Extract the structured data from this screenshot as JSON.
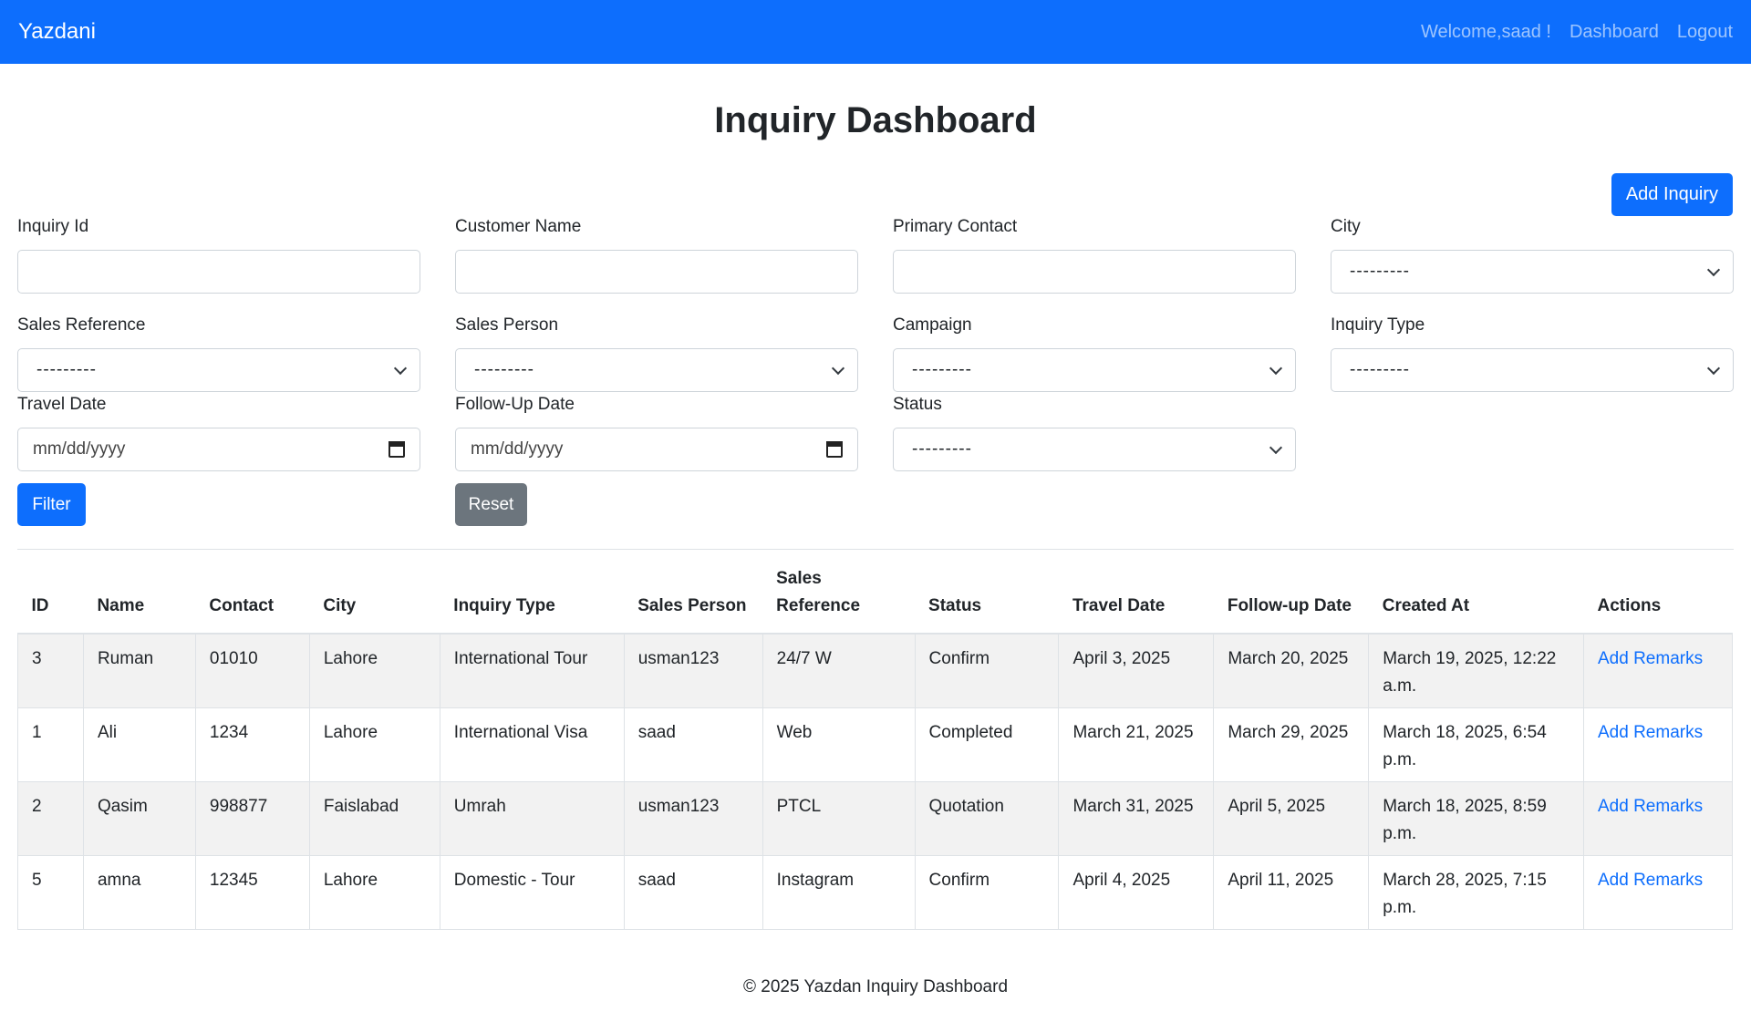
{
  "navbar": {
    "brand": "Yazdani",
    "welcome": "Welcome,saad !",
    "dashboard_link": "Dashboard",
    "logout_link": "Logout"
  },
  "page": {
    "title": "Inquiry Dashboard",
    "add_button": "Add Inquiry"
  },
  "filters": {
    "inquiry_id": {
      "label": "Inquiry Id",
      "value": ""
    },
    "customer_name": {
      "label": "Customer Name",
      "value": ""
    },
    "primary_contact": {
      "label": "Primary Contact",
      "value": ""
    },
    "city": {
      "label": "City",
      "selected": "---------"
    },
    "sales_reference": {
      "label": "Sales Reference",
      "selected": "---------"
    },
    "sales_person": {
      "label": "Sales Person",
      "selected": "---------"
    },
    "campaign": {
      "label": "Campaign",
      "selected": "---------"
    },
    "inquiry_type": {
      "label": "Inquiry Type",
      "selected": "---------"
    },
    "travel_date": {
      "label": "Travel Date",
      "placeholder": "mm/dd/yyyy"
    },
    "follow_up_date": {
      "label": "Follow-Up Date",
      "placeholder": "mm/dd/yyyy"
    },
    "status": {
      "label": "Status",
      "selected": "---------"
    },
    "filter_button": "Filter",
    "reset_button": "Reset"
  },
  "table": {
    "headers": [
      "ID",
      "Name",
      "Contact",
      "City",
      "Inquiry Type",
      "Sales Person",
      "Sales Reference",
      "Status",
      "Travel Date",
      "Follow-up Date",
      "Created At",
      "Actions"
    ],
    "rows": [
      {
        "id": "3",
        "name": "Ruman",
        "contact": "01010",
        "city": "Lahore",
        "inquiry_type": "International Tour",
        "sales_person": "usman123",
        "sales_reference": "24/7 W",
        "status": "Confirm",
        "travel_date": "April 3, 2025",
        "follow_up_date": "March 20, 2025",
        "created_at": "March 19, 2025, 12:22 a.m.",
        "action": "Add Remarks"
      },
      {
        "id": "1",
        "name": "Ali",
        "contact": "1234",
        "city": "Lahore",
        "inquiry_type": "International Visa",
        "sales_person": "saad",
        "sales_reference": "Web",
        "status": "Completed",
        "travel_date": "March 21, 2025",
        "follow_up_date": "March 29, 2025",
        "created_at": "March 18, 2025, 6:54 p.m.",
        "action": "Add Remarks"
      },
      {
        "id": "2",
        "name": "Qasim",
        "contact": "998877",
        "city": "Faislabad",
        "inquiry_type": "Umrah",
        "sales_person": "usman123",
        "sales_reference": "PTCL",
        "status": "Quotation",
        "travel_date": "March 31, 2025",
        "follow_up_date": "April 5, 2025",
        "created_at": "March 18, 2025, 8:59 p.m.",
        "action": "Add Remarks"
      },
      {
        "id": "5",
        "name": "amna",
        "contact": "12345",
        "city": "Lahore",
        "inquiry_type": "Domestic - Tour",
        "sales_person": "saad",
        "sales_reference": "Instagram",
        "status": "Confirm",
        "travel_date": "April 4, 2025",
        "follow_up_date": "April 11, 2025",
        "created_at": "March 28, 2025, 7:15 p.m.",
        "action": "Add Remarks"
      }
    ]
  },
  "footer": {
    "text": "© 2025 Yazdan Inquiry Dashboard"
  },
  "colors": {
    "primary": "#0d6efd",
    "secondary": "#6c757d",
    "stripe": "#f2f2f2"
  }
}
